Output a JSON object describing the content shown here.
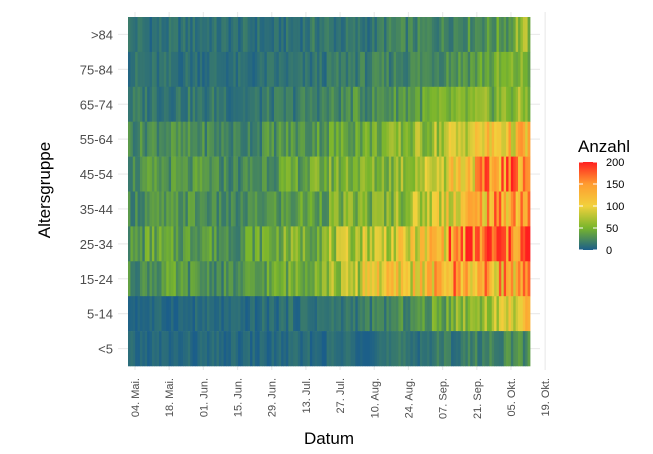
{
  "chart_data": {
    "type": "heatmap",
    "xlabel": "Datum",
    "ylabel": "Altersgruppe",
    "legend": {
      "title": "Anzahl",
      "ticks": [
        "0",
        "50",
        "100",
        "150",
        "200"
      ],
      "placement": "right"
    },
    "color_scale": {
      "stops": [
        0,
        50,
        100,
        150,
        200
      ],
      "colors": [
        "#1b5e8a",
        "#78b52c",
        "#f2d13c",
        "#ff9c30",
        "#ff1f1f"
      ]
    },
    "x_ticks": [
      "04. Mai.",
      "18. Mai.",
      "01. Jun.",
      "15. Jun.",
      "29. Jun.",
      "13. Jul.",
      "27. Jul.",
      "10. Aug.",
      "24. Aug.",
      "07. Sep.",
      "21. Sep.",
      "05. Okt.",
      "19. Okt."
    ],
    "categories": [
      ">84",
      "75-84",
      "65-74",
      "55-64",
      "45-54",
      "35-44",
      "25-34",
      "15-24",
      "5-14",
      "<5"
    ],
    "weekly_values": [
      [
        12,
        10,
        10,
        10,
        12,
        10,
        10,
        10,
        8,
        10,
        12,
        15,
        12,
        12,
        12,
        18,
        20,
        20,
        22,
        25,
        28,
        30,
        35,
        60
      ],
      [
        12,
        10,
        10,
        10,
        10,
        10,
        8,
        8,
        10,
        10,
        10,
        12,
        15,
        18,
        18,
        20,
        22,
        25,
        28,
        32,
        35,
        40,
        45,
        50
      ],
      [
        15,
        15,
        15,
        15,
        12,
        15,
        12,
        12,
        15,
        15,
        18,
        20,
        22,
        28,
        25,
        30,
        35,
        38,
        42,
        45,
        48,
        50,
        55,
        58
      ],
      [
        25,
        28,
        28,
        25,
        25,
        22,
        20,
        22,
        28,
        30,
        30,
        35,
        40,
        45,
        45,
        50,
        55,
        62,
        70,
        80,
        95,
        105,
        110,
        115
      ],
      [
        25,
        30,
        30,
        28,
        30,
        25,
        22,
        25,
        32,
        38,
        40,
        45,
        50,
        55,
        50,
        55,
        65,
        75,
        90,
        110,
        125,
        140,
        155,
        170
      ],
      [
        25,
        28,
        28,
        30,
        28,
        22,
        20,
        25,
        30,
        32,
        38,
        40,
        48,
        50,
        50,
        55,
        65,
        75,
        90,
        105,
        120,
        135,
        140,
        150
      ],
      [
        30,
        40,
        35,
        35,
        40,
        30,
        30,
        40,
        45,
        50,
        50,
        55,
        65,
        75,
        80,
        85,
        90,
        100,
        120,
        150,
        160,
        170,
        165,
        175
      ],
      [
        25,
        30,
        35,
        30,
        28,
        25,
        25,
        30,
        40,
        45,
        55,
        60,
        65,
        70,
        110,
        100,
        100,
        110,
        120,
        140,
        130,
        130,
        140,
        130
      ],
      [
        5,
        5,
        5,
        5,
        6,
        5,
        5,
        6,
        8,
        10,
        10,
        12,
        12,
        15,
        18,
        20,
        25,
        30,
        40,
        55,
        60,
        70,
        90,
        100
      ],
      [
        5,
        5,
        5,
        5,
        5,
        5,
        5,
        5,
        5,
        6,
        6,
        6,
        8,
        8,
        8,
        10,
        12,
        12,
        15,
        15,
        18,
        20,
        25,
        25
      ]
    ]
  }
}
